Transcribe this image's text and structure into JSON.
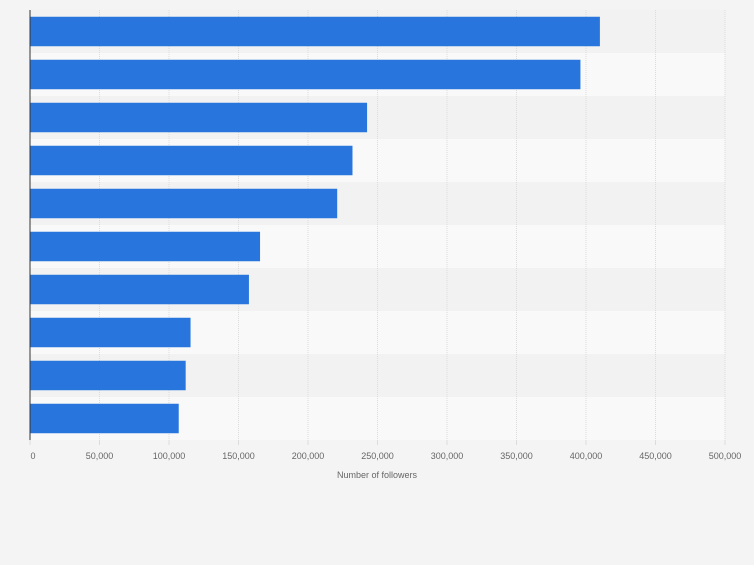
{
  "chart_data": {
    "type": "bar",
    "orientation": "horizontal",
    "categories": [
      "",
      "",
      "",
      "",
      "",
      "",
      "",
      "",
      "",
      ""
    ],
    "values": [
      410000,
      396000,
      242500,
      232000,
      221000,
      165500,
      157500,
      115500,
      112000,
      107000
    ],
    "title": "",
    "xlabel": "Number of followers",
    "ylabel": "",
    "xlim": [
      0,
      500000
    ],
    "x_ticks": [
      "0",
      "50,000",
      "100,000",
      "150,000",
      "200,000",
      "250,000",
      "300,000",
      "350,000",
      "400,000",
      "450,000",
      "500,000"
    ],
    "grid": true,
    "legend": "none"
  },
  "colors": {
    "bar": "#2876dd",
    "band_dark": "#f2f2f2",
    "band_light": "#f9f9f9",
    "grid": "#dcdcdc",
    "axis": "#333333",
    "tick_text": "#666666"
  }
}
